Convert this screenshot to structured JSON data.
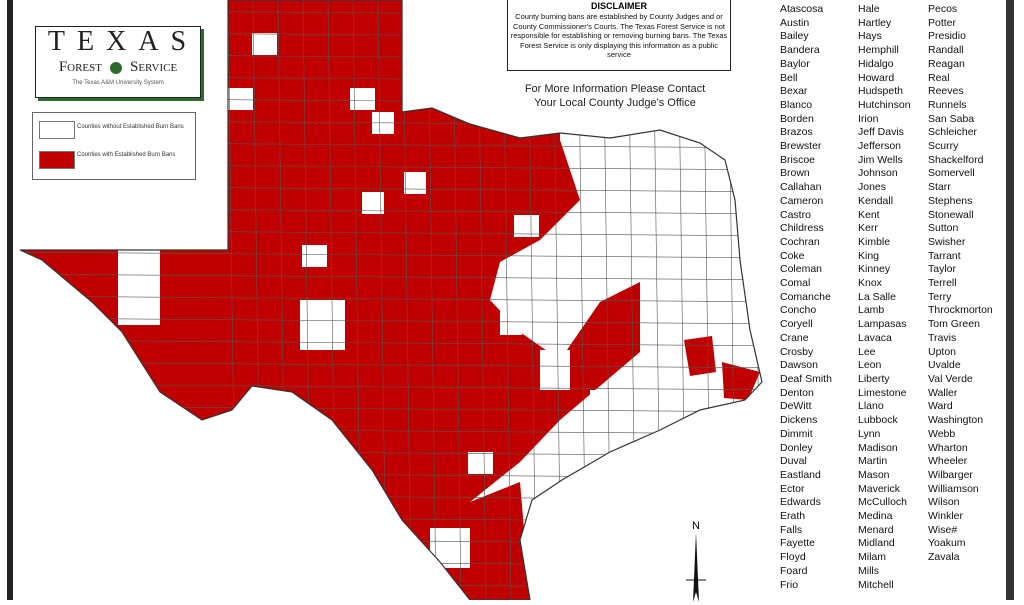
{
  "logo": {
    "line1": "TEXAS",
    "line2a": "Forest",
    "line2b": "Service",
    "line3": "The Texas A&M University System"
  },
  "legend": {
    "items": [
      {
        "label": "Counties without Established Burn Bans",
        "color": "#ffffff"
      },
      {
        "label": "Counties with Established Burn Bans",
        "color": "#c00000"
      }
    ]
  },
  "disclaimer": {
    "heading": "DISCLAIMER",
    "text": "County burning bans are established by County Judges and or County Commissioner's Courts. The Texas Forest Service is not responsible for establishing or removing burning bans. The Texas Forest Service is only displaying this information as a public service"
  },
  "contact": {
    "line1": "For More Information Please Contact",
    "line2": "Your Local County Judge's Office"
  },
  "compass": {
    "label": "N"
  },
  "colors": {
    "ban": "#c00000",
    "no_ban": "#ffffff",
    "border": "#555555"
  },
  "county_list": {
    "col1": [
      "Atascosa",
      "Austin",
      "Bailey",
      "Bandera",
      "Baylor",
      "Bell",
      "Bexar",
      "Blanco",
      "Borden",
      "Brazos",
      "Brewster",
      "Briscoe",
      "Brown",
      "Callahan",
      "Cameron",
      "Castro",
      "Childress",
      "Cochran",
      "Coke",
      "Coleman",
      "Comal",
      "Comanche",
      "Concho",
      "Coryell",
      "Crane",
      "Crosby",
      "Dawson",
      "Deaf Smith",
      "Denton",
      "DeWitt",
      "Dickens",
      "Dimmit",
      "Donley",
      "Duval",
      "Eastland",
      "Ector",
      "Edwards",
      "Erath",
      "Falls",
      "Fayette",
      "Floyd",
      "Foard",
      "Frio"
    ],
    "col2": [
      "Hale",
      "Hartley",
      "Hays",
      "Hemphill",
      "Hidalgo",
      "Howard",
      "Hudspeth",
      "Hutchinson",
      "Irion",
      "Jeff Davis",
      "Jefferson",
      "Jim Wells",
      "Johnson",
      "Jones",
      "Kendall",
      "Kent",
      "Kerr",
      "Kimble",
      "King",
      "Kinney",
      "Knox",
      "La Salle",
      "Lamb",
      "Lampasas",
      "Lavaca",
      "Lee",
      "Leon",
      "Liberty",
      "Limestone",
      "Llano",
      "Lubbock",
      "Lynn",
      "Madison",
      "Martin",
      "Mason",
      "Maverick",
      "McCulloch",
      "Medina",
      "Menard",
      "Midland",
      "Milam",
      "Mills",
      "Mitchell"
    ],
    "col3": [
      "Pecos",
      "Potter",
      "Presidio",
      "Randall",
      "Reagan",
      "Real",
      "Reeves",
      "Runnels",
      "San Saba",
      "Schleicher",
      "Scurry",
      "Shackelford",
      "Somervell",
      "Starr",
      "Stephens",
      "Stonewall",
      "Sutton",
      "Swisher",
      "Tarrant",
      "Taylor",
      "Terrell",
      "Terry",
      "Throckmorton",
      "Tom Green",
      "Travis",
      "Upton",
      "Uvalde",
      "Val Verde",
      "Waller",
      "Ward",
      "Washington",
      "Webb",
      "Wharton",
      "Wheeler",
      "Wilbarger",
      "Williamson",
      "Wilson",
      "Winkler",
      "Wise#",
      "Yoakum",
      "Zavala"
    ]
  }
}
